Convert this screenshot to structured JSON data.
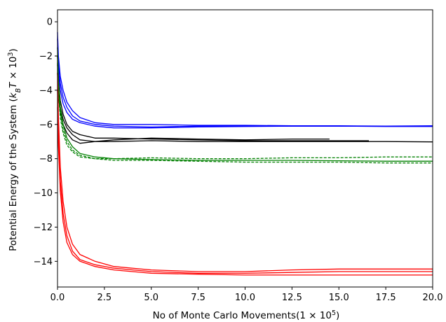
{
  "chart_data": {
    "type": "line",
    "title": "",
    "xlabel": "No of Monte Carlo Movements",
    "xlabel_math": "(1 × 10",
    "xlabel_exp": "5",
    "xlabel_close": ")",
    "ylabel": "Potential Energy of the System ",
    "ylabel_math_open": "(",
    "ylabel_k": "k",
    "ylabel_sub": "B",
    "ylabel_T": "T",
    "ylabel_times": " × 10",
    "ylabel_exp": "3",
    "ylabel_close": ")",
    "xlim": [
      0,
      20
    ],
    "ylim": [
      -15.5,
      0.7
    ],
    "xticks": [
      0,
      2.5,
      5,
      7.5,
      10,
      12.5,
      15,
      17.5,
      20
    ],
    "xtick_labels": [
      "0.0",
      "2.5",
      "5.0",
      "7.5",
      "10.0",
      "12.5",
      "15.0",
      "17.5",
      "20.0"
    ],
    "yticks": [
      0,
      -2,
      -4,
      -6,
      -8,
      -10,
      -12,
      -14
    ],
    "ytick_labels": [
      "0",
      "−2",
      "−4",
      "−6",
      "−8",
      "−10",
      "−12",
      "−14"
    ],
    "grid": false,
    "legend": "none",
    "series": [
      {
        "color": "#0000ff",
        "style": "solid",
        "x": [
          0,
          0.05,
          0.15,
          0.3,
          0.5,
          0.8,
          1.2,
          2,
          3,
          5,
          7.5,
          10,
          12.5,
          15,
          17.5,
          20
        ],
        "y": [
          -0.6,
          -2.0,
          -3.2,
          -4.0,
          -4.7,
          -5.2,
          -5.6,
          -5.9,
          -6.0,
          -6.0,
          -6.05,
          -6.05,
          -6.08,
          -6.08,
          -6.1,
          -6.1
        ]
      },
      {
        "color": "#0000ff",
        "style": "solid",
        "x": [
          0,
          0.05,
          0.15,
          0.3,
          0.5,
          0.8,
          1.2,
          2,
          3,
          5,
          7.5,
          10,
          12.5,
          15,
          17.5,
          20
        ],
        "y": [
          -1.0,
          -2.5,
          -3.6,
          -4.4,
          -5.0,
          -5.5,
          -5.8,
          -6.0,
          -6.1,
          -6.15,
          -6.1,
          -6.1,
          -6.1,
          -6.1,
          -6.12,
          -6.12
        ]
      },
      {
        "color": "#0000ff",
        "style": "solid",
        "x": [
          0,
          0.05,
          0.15,
          0.3,
          0.5,
          0.8,
          1.2,
          2,
          3,
          5,
          7.5,
          10,
          12.5,
          15,
          17.5,
          20
        ],
        "y": [
          -1.5,
          -3.0,
          -4.0,
          -4.8,
          -5.3,
          -5.7,
          -5.9,
          -6.1,
          -6.2,
          -6.2,
          -6.15,
          -6.12,
          -6.1,
          -6.1,
          -6.1,
          -6.08
        ]
      },
      {
        "color": "#000000",
        "style": "solid",
        "x": [
          0,
          0.05,
          0.15,
          0.3,
          0.5,
          0.8,
          1.2,
          2,
          3,
          5,
          7.5,
          10,
          12.5,
          15,
          16.6
        ],
        "y": [
          -2.0,
          -3.5,
          -4.6,
          -5.4,
          -6.0,
          -6.4,
          -6.6,
          -6.8,
          -6.8,
          -6.85,
          -6.9,
          -6.95,
          -6.95,
          -6.95,
          -6.95
        ]
      },
      {
        "color": "#000000",
        "style": "solid",
        "x": [
          0,
          0.05,
          0.15,
          0.3,
          0.5,
          0.8,
          1.2,
          2,
          3,
          5,
          7.5,
          10,
          12.5,
          15,
          17.5,
          20
        ],
        "y": [
          -2.5,
          -4.0,
          -5.0,
          -5.7,
          -6.2,
          -6.6,
          -6.9,
          -7.0,
          -7.0,
          -6.95,
          -7.0,
          -7.0,
          -7.0,
          -7.0,
          -7.0,
          -7.02
        ]
      },
      {
        "color": "#000000",
        "style": "solid",
        "x": [
          0,
          0.05,
          0.15,
          0.3,
          0.5,
          0.8,
          1.2,
          2,
          3,
          5,
          7.5,
          10,
          12.5,
          14.5
        ],
        "y": [
          -3.0,
          -4.3,
          -5.3,
          -6.0,
          -6.5,
          -6.9,
          -7.1,
          -7.0,
          -6.9,
          -6.8,
          -6.85,
          -6.9,
          -6.85,
          -6.85
        ]
      },
      {
        "color": "#008000",
        "style": "solid",
        "x": [
          0,
          0.05,
          0.15,
          0.3,
          0.5,
          0.8,
          1.2,
          2,
          3,
          5,
          7.5,
          10,
          12.5,
          15,
          17.5,
          20
        ],
        "y": [
          -1.5,
          -3.5,
          -5.0,
          -6.0,
          -6.8,
          -7.3,
          -7.7,
          -7.9,
          -8.0,
          -8.05,
          -8.1,
          -8.1,
          -8.1,
          -8.12,
          -8.15,
          -8.15
        ]
      },
      {
        "color": "#008000",
        "style": "dashed",
        "x": [
          0,
          0.05,
          0.15,
          0.3,
          0.5,
          0.8,
          1.2,
          2,
          3,
          5,
          7.5,
          10,
          12.5,
          15,
          17.5,
          20
        ],
        "y": [
          -2.0,
          -3.9,
          -5.3,
          -6.3,
          -7.0,
          -7.5,
          -7.8,
          -8.0,
          -8.1,
          -8.1,
          -8.15,
          -8.2,
          -8.2,
          -8.2,
          -8.25,
          -8.25
        ]
      },
      {
        "color": "#008000",
        "style": "dashed",
        "x": [
          0,
          0.05,
          0.15,
          0.3,
          0.5,
          0.8,
          1.2,
          2,
          3,
          5,
          7.5,
          10,
          12.5,
          15,
          17.5,
          20
        ],
        "y": [
          -2.4,
          -4.2,
          -5.6,
          -6.5,
          -7.2,
          -7.6,
          -7.9,
          -8.0,
          -8.0,
          -7.95,
          -8.0,
          -8.0,
          -7.95,
          -7.95,
          -7.9,
          -7.9
        ]
      },
      {
        "color": "#ff0000",
        "style": "solid",
        "x": [
          0,
          0.05,
          0.15,
          0.3,
          0.5,
          0.8,
          1.2,
          2,
          3,
          5,
          7.5,
          10,
          12.5,
          15,
          17.5,
          20
        ],
        "y": [
          -3.0,
          -5.5,
          -8.5,
          -10.5,
          -12.0,
          -13.0,
          -13.6,
          -14.0,
          -14.3,
          -14.5,
          -14.6,
          -14.6,
          -14.5,
          -14.45,
          -14.45,
          -14.45
        ]
      },
      {
        "color": "#ff0000",
        "style": "solid",
        "x": [
          0,
          0.05,
          0.15,
          0.3,
          0.5,
          0.8,
          1.2,
          2,
          3,
          5,
          7.5,
          10,
          12.5,
          15,
          17.5,
          20
        ],
        "y": [
          -4.0,
          -6.5,
          -9.3,
          -11.2,
          -12.5,
          -13.4,
          -13.9,
          -14.2,
          -14.4,
          -14.6,
          -14.7,
          -14.7,
          -14.65,
          -14.6,
          -14.6,
          -14.6
        ]
      },
      {
        "color": "#ff0000",
        "style": "solid",
        "x": [
          0,
          0.05,
          0.15,
          0.3,
          0.5,
          0.8,
          1.2,
          2,
          3,
          5,
          7.5,
          10,
          12.5,
          15,
          17.5,
          20
        ],
        "y": [
          -5.0,
          -7.3,
          -9.9,
          -11.7,
          -12.9,
          -13.6,
          -14.0,
          -14.3,
          -14.5,
          -14.7,
          -14.75,
          -14.8,
          -14.8,
          -14.8,
          -14.8,
          -14.8
        ]
      }
    ]
  }
}
